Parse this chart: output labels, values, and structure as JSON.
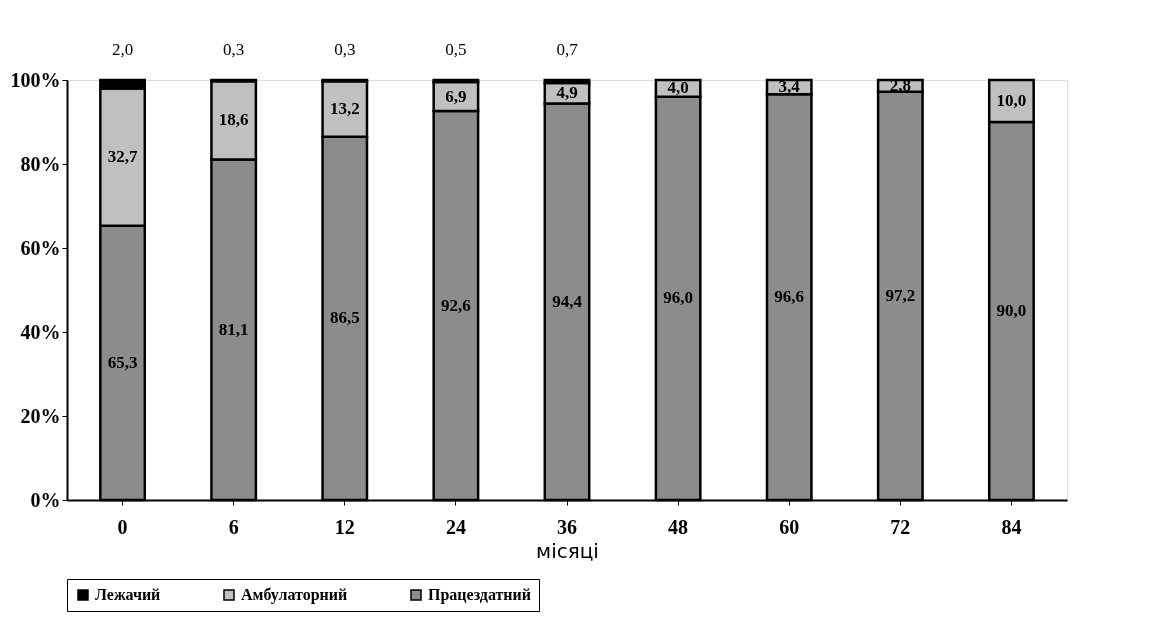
{
  "chart_data": {
    "type": "bar",
    "stacked": true,
    "xlabel": "місяці",
    "categories": [
      "0",
      "6",
      "12",
      "24",
      "36",
      "48",
      "60",
      "72",
      "84"
    ],
    "series": [
      {
        "name": "Працездатний",
        "color": "#8c8c8c",
        "values": [
          65.3,
          81.1,
          86.5,
          92.6,
          94.4,
          96.0,
          96.6,
          97.2,
          90.0
        ],
        "value_labels": [
          "65,3",
          "81,1",
          "86,5",
          "92,6",
          "94,4",
          "96,0",
          "96,6",
          "97,2",
          "90,0"
        ]
      },
      {
        "name": "Амбулаторний",
        "color": "#c0c0c0",
        "values": [
          32.7,
          18.6,
          13.2,
          6.9,
          4.9,
          4.0,
          3.4,
          2.8,
          10.0
        ],
        "value_labels": [
          "32,7",
          "18,6",
          "13,2",
          "6,9",
          "4,9",
          "4,0",
          "3,4",
          "2,8",
          "10,0"
        ]
      },
      {
        "name": "Лежачий",
        "color": "#000000",
        "values": [
          2.0,
          0.3,
          0.3,
          0.5,
          0.7,
          null,
          null,
          null,
          null
        ],
        "value_labels": [
          "2,0",
          "0,3",
          "0,3",
          "0,5",
          "0,7",
          null,
          null,
          null,
          null
        ]
      }
    ],
    "ylim": [
      0,
      100
    ],
    "yticks": [
      {
        "value": 0,
        "label": "0%"
      },
      {
        "value": 20,
        "label": "20%"
      },
      {
        "value": 40,
        "label": "40%"
      },
      {
        "value": 60,
        "label": "60%"
      },
      {
        "value": 80,
        "label": "80%"
      },
      {
        "value": 100,
        "label": "100%"
      }
    ],
    "grid": false,
    "legend": "bottom"
  }
}
